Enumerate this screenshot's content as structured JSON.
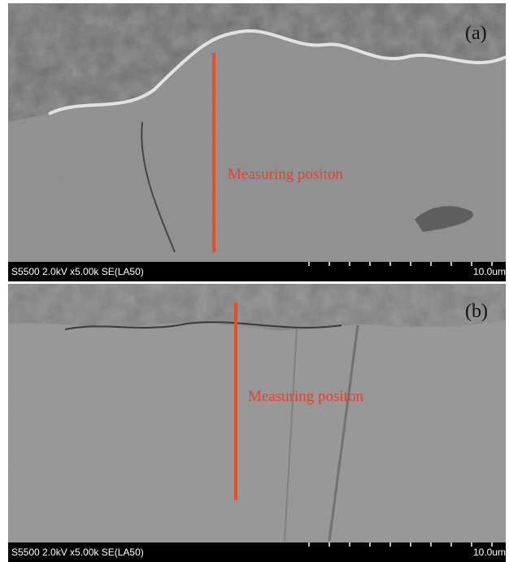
{
  "panels": [
    {
      "label": "(a)",
      "annotation": "Measuring positon",
      "info": "S5500 2.0kV x5.00k SE(LA50)",
      "scale": "10.0um"
    },
    {
      "label": "(b)",
      "annotation": "Measuring positon",
      "info": "S5500 2.0kV x5.00k SE(LA50)",
      "scale": "10.0um"
    }
  ]
}
